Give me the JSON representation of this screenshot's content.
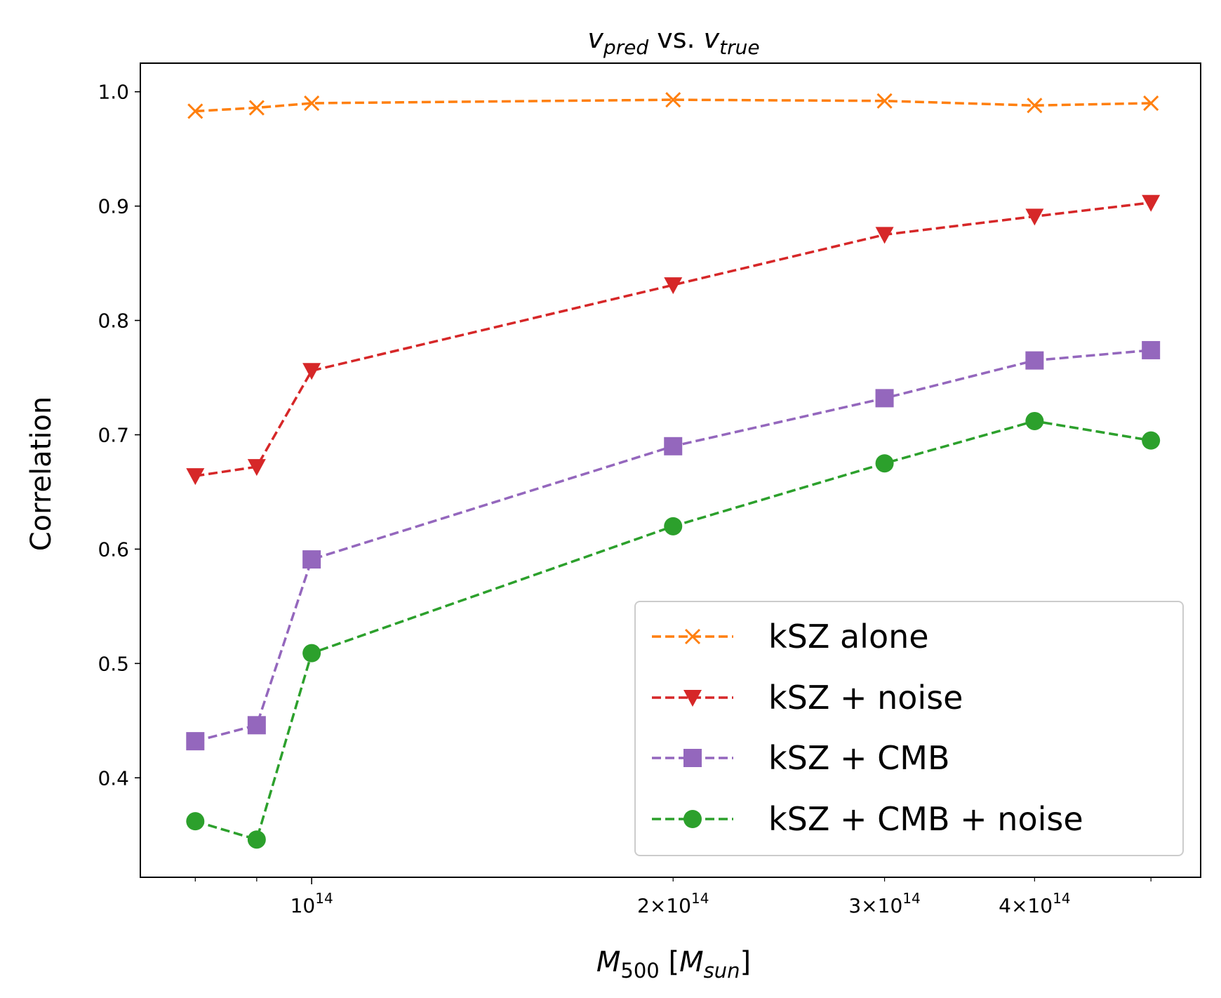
{
  "chart_data": {
    "type": "line",
    "title_parts": {
      "v": "v",
      "pred": "pred",
      "vs": " vs. ",
      "v2": "v",
      "true": "true"
    },
    "xlabel_parts": {
      "M": "M",
      "sub": "500",
      "open": " [",
      "M2": "M",
      "sub2": "sun",
      "close": "]"
    },
    "ylabel": "Correlation",
    "xscale": "log",
    "xlim": [
      72000000000000,
      550000000000000
    ],
    "ylim": [
      0.313,
      1.025
    ],
    "x": [
      80000000000000,
      90000000000000,
      100000000000000,
      200000000000000,
      300000000000000,
      400000000000000,
      500000000000000
    ],
    "yticks": [
      {
        "value": 0.4,
        "label": "0.4"
      },
      {
        "value": 0.5,
        "label": "0.5"
      },
      {
        "value": 0.6,
        "label": "0.6"
      },
      {
        "value": 0.7,
        "label": "0.7"
      },
      {
        "value": 0.8,
        "label": "0.8"
      },
      {
        "value": 0.9,
        "label": "0.9"
      },
      {
        "value": 1.0,
        "label": "1.0"
      }
    ],
    "xticks_major": [
      {
        "value": 100000000000000,
        "mant": "",
        "base": "10",
        "exp": "14"
      }
    ],
    "xticks_minor_labeled": [
      {
        "value": 200000000000000,
        "mant": "2×",
        "base": "10",
        "exp": "14"
      },
      {
        "value": 300000000000000,
        "mant": "3×",
        "base": "10",
        "exp": "14"
      },
      {
        "value": 400000000000000,
        "mant": "4×",
        "base": "10",
        "exp": "14"
      }
    ],
    "xticks_minor_unlabeled": [
      80000000000000,
      90000000000000,
      500000000000000
    ],
    "series": [
      {
        "name": "kSZ alone",
        "color": "#ff7f0e",
        "marker": "x",
        "values": [
          0.983,
          0.986,
          0.99,
          0.993,
          0.992,
          0.988,
          0.99
        ]
      },
      {
        "name": "kSZ + noise",
        "color": "#d62728",
        "marker": "triangle-down",
        "values": [
          0.664,
          0.672,
          0.756,
          0.831,
          0.875,
          0.891,
          0.903
        ]
      },
      {
        "name": "kSZ + CMB",
        "color": "#9467bd",
        "marker": "square",
        "values": [
          0.432,
          0.446,
          0.591,
          0.69,
          0.732,
          0.765,
          0.774
        ]
      },
      {
        "name": "kSZ + CMB + noise",
        "color": "#2ca02c",
        "marker": "circle",
        "values": [
          0.362,
          0.346,
          0.509,
          0.62,
          0.675,
          0.712,
          0.695
        ]
      }
    ],
    "legend_position": "lower-right",
    "grid": false
  }
}
